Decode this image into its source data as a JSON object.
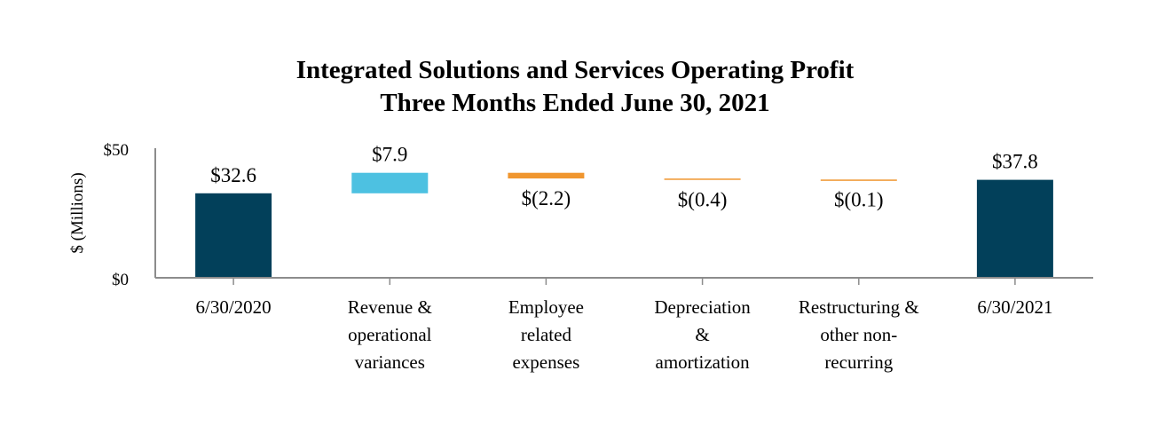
{
  "chart_data": {
    "type": "bar",
    "subtype": "waterfall",
    "title": "Integrated Solutions and Services Operating Profit",
    "subtitle": "Three Months Ended June 30, 2021",
    "ylabel": "$ (Millions)",
    "ylim": [
      0,
      50
    ],
    "y_ticks": [
      "$0",
      "$50"
    ],
    "grid": false,
    "categories": [
      [
        "6/30/2020"
      ],
      [
        "Revenue &",
        "operational",
        "variances"
      ],
      [
        "Employee",
        "related",
        "expenses"
      ],
      [
        "Depreciation",
        "&",
        "amortization"
      ],
      [
        "Restructuring &",
        "other non-",
        "recurring"
      ],
      [
        "6/30/2021"
      ]
    ],
    "values": [
      32.6,
      7.9,
      -2.2,
      -0.4,
      -0.1,
      37.8
    ],
    "bar_kinds": [
      "total",
      "increase",
      "decrease",
      "decrease",
      "decrease",
      "total"
    ],
    "data_labels": [
      "$32.6",
      "$7.9",
      "$(2.2)",
      "$(0.4)",
      "$(0.1)",
      "$37.8"
    ],
    "colors": {
      "total": "#02405a",
      "increase": "#4dc1e1",
      "decrease": "#f0962f",
      "axis": "#8c8c8c"
    }
  }
}
